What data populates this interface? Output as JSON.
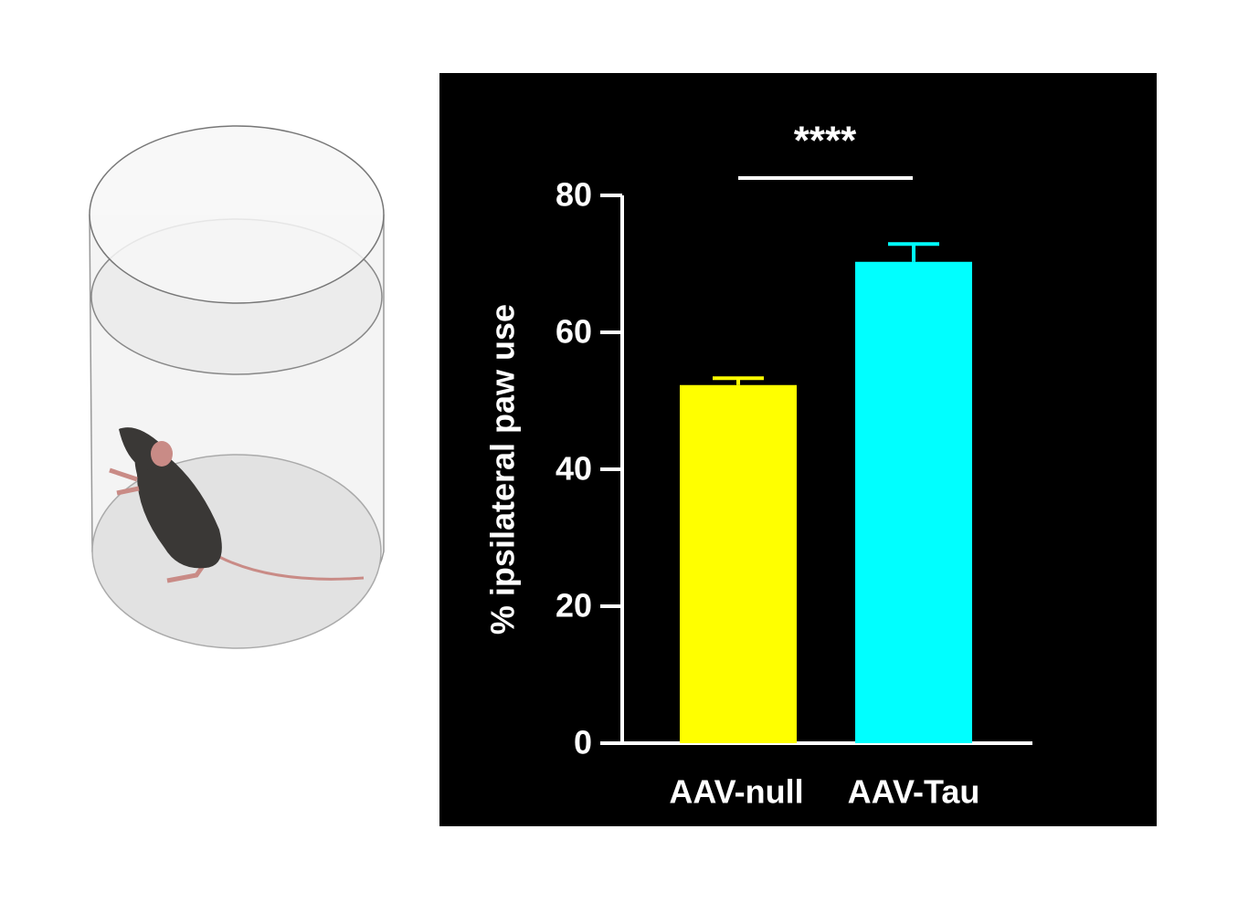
{
  "chart_data": {
    "type": "bar",
    "categories": [
      "AAV-null",
      "AAV-Tau"
    ],
    "values": [
      52.3,
      70.3
    ],
    "errors": [
      1.0,
      2.6
    ],
    "colors": [
      "#ffff00",
      "#00ffff"
    ],
    "ylabel": "% ipsilateral paw use",
    "annotation": "****",
    "ylim": [
      0,
      80
    ],
    "yticks": [
      0,
      20,
      40,
      60,
      80
    ],
    "background": "#000000"
  }
}
